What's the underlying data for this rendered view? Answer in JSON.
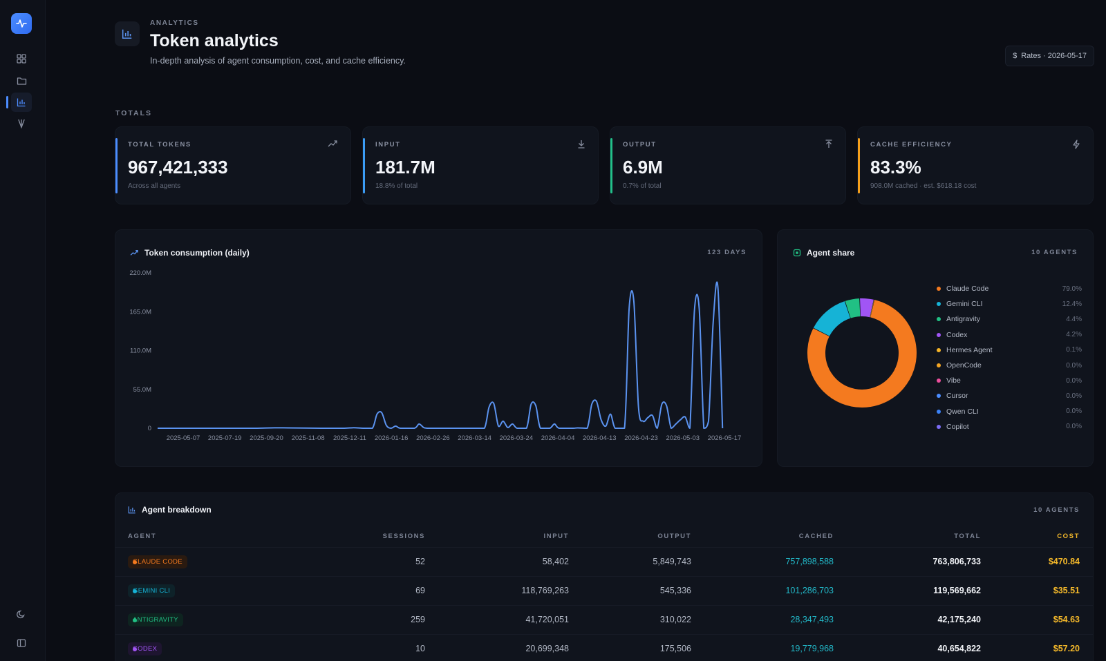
{
  "sidebar": {
    "logo_icon": "activity-icon",
    "items": [
      {
        "name": "dashboard",
        "icon": "grid-icon",
        "active": false
      },
      {
        "name": "projects",
        "icon": "folder-icon",
        "active": false
      },
      {
        "name": "analytics",
        "icon": "bar-chart-icon",
        "active": true
      },
      {
        "name": "agents",
        "icon": "fork-icon",
        "active": false
      }
    ],
    "bottom_items": [
      {
        "name": "theme",
        "icon": "moon-icon"
      },
      {
        "name": "collapse",
        "icon": "sidebar-toggle-icon"
      }
    ]
  },
  "header": {
    "eyebrow": "ANALYTICS",
    "title": "Token analytics",
    "subtitle": "In-depth analysis of agent consumption, cost, and cache efficiency.",
    "rates_button": "Rates · 2026-05-17",
    "rates_icon": "dollar-icon"
  },
  "totals": {
    "section_label": "TOTALS",
    "cards": [
      {
        "label": "TOTAL TOKENS",
        "value": "967,421,333",
        "note": "Across all agents",
        "accent": "#4c8dff",
        "icon": "trending-up-icon"
      },
      {
        "label": "INPUT",
        "value": "181.7M",
        "note": "18.8% of total",
        "accent": "#3b9cf5",
        "icon": "download-icon"
      },
      {
        "label": "OUTPUT",
        "value": "6.9M",
        "note": "0.7% of total",
        "accent": "#22c08a",
        "icon": "upload-icon"
      },
      {
        "label": "CACHE EFFICIENCY",
        "value": "83.3%",
        "note": "908.0M cached · est. $618.18 cost",
        "accent": "#f59f1b",
        "icon": "bolt-icon"
      }
    ]
  },
  "consumption": {
    "title": "Token consumption (daily)",
    "meta": "123 DAYS",
    "line_color": "#5b93f0"
  },
  "chart_data": {
    "type": "line",
    "title": "Token consumption (daily)",
    "x_ticks": [
      "2025-05-07",
      "2025-07-19",
      "2025-09-20",
      "2025-11-08",
      "2025-12-11",
      "2026-01-16",
      "2026-02-26",
      "2026-03-14",
      "2026-03-24",
      "2026-04-04",
      "2026-04-13",
      "2026-04-23",
      "2026-05-03",
      "2026-05-17"
    ],
    "y_ticks": [
      "0",
      "55.0M",
      "110.0M",
      "165.0M",
      "220.0M"
    ],
    "ylim": [
      0,
      220
    ],
    "y_unit": "M",
    "x_index_range": [
      0,
      122
    ],
    "points": [
      [
        0,
        0
      ],
      [
        10,
        0
      ],
      [
        20,
        0
      ],
      [
        25,
        0.6
      ],
      [
        28,
        0.5
      ],
      [
        35,
        0
      ],
      [
        40,
        0
      ],
      [
        42,
        0.7
      ],
      [
        44,
        0
      ],
      [
        46,
        0
      ],
      [
        47,
        20
      ],
      [
        48,
        22
      ],
      [
        49,
        4
      ],
      [
        50,
        0
      ],
      [
        51,
        3
      ],
      [
        52,
        0
      ],
      [
        55,
        0
      ],
      [
        56,
        6
      ],
      [
        57,
        1
      ],
      [
        58,
        0
      ],
      [
        62,
        0
      ],
      [
        68,
        0
      ],
      [
        70,
        0
      ],
      [
        71,
        30
      ],
      [
        72,
        35
      ],
      [
        73,
        3
      ],
      [
        74,
        10
      ],
      [
        75,
        1
      ],
      [
        76,
        6
      ],
      [
        77,
        0
      ],
      [
        79,
        0
      ],
      [
        80,
        34
      ],
      [
        81,
        32
      ],
      [
        82,
        0
      ],
      [
        84,
        0
      ],
      [
        85,
        6
      ],
      [
        86,
        0
      ],
      [
        89,
        0
      ],
      [
        90,
        0.5
      ],
      [
        92,
        0
      ],
      [
        93,
        34
      ],
      [
        94,
        38
      ],
      [
        95,
        12
      ],
      [
        96,
        3
      ],
      [
        97,
        20
      ],
      [
        98,
        0
      ],
      [
        100,
        0
      ],
      [
        101,
        170
      ],
      [
        102,
        180
      ],
      [
        103,
        30
      ],
      [
        104,
        10
      ],
      [
        105,
        15
      ],
      [
        106,
        18
      ],
      [
        107,
        0
      ],
      [
        108,
        34
      ],
      [
        109,
        32
      ],
      [
        110,
        0
      ],
      [
        111,
        6
      ],
      [
        112,
        12
      ],
      [
        113,
        16
      ],
      [
        114,
        0
      ],
      [
        115,
        168
      ],
      [
        116,
        170
      ],
      [
        117,
        0
      ],
      [
        118,
        10
      ],
      [
        119,
        150
      ],
      [
        120,
        200
      ],
      [
        121,
        0
      ]
    ],
    "grid": false
  },
  "agent_share": {
    "title": "Agent share",
    "meta": "10 AGENTS",
    "icon": "chip-icon",
    "segments": [
      {
        "name": "Claude Code",
        "pct_label": "79.0%",
        "pct": 79.0,
        "color": "#f47a1f"
      },
      {
        "name": "Gemini CLI",
        "pct_label": "12.4%",
        "pct": 12.4,
        "color": "#16b3d6"
      },
      {
        "name": "Antigravity",
        "pct_label": "4.4%",
        "pct": 4.4,
        "color": "#21c084"
      },
      {
        "name": "Codex",
        "pct_label": "4.2%",
        "pct": 4.2,
        "color": "#a155f5"
      },
      {
        "name": "Hermes Agent",
        "pct_label": "0.1%",
        "pct": 0.1,
        "color": "#f5b428"
      },
      {
        "name": "OpenCode",
        "pct_label": "0.0%",
        "pct": 0.0,
        "color": "#f5a623"
      },
      {
        "name": "Vibe",
        "pct_label": "0.0%",
        "pct": 0.0,
        "color": "#ec4f9c"
      },
      {
        "name": "Cursor",
        "pct_label": "0.0%",
        "pct": 0.0,
        "color": "#4c8dff"
      },
      {
        "name": "Qwen CLI",
        "pct_label": "0.0%",
        "pct": 0.0,
        "color": "#3b82f6"
      },
      {
        "name": "Copilot",
        "pct_label": "0.0%",
        "pct": 0.0,
        "color": "#7c6cf5"
      }
    ]
  },
  "breakdown": {
    "title": "Agent breakdown",
    "meta": "10 AGENTS",
    "icon": "bar-chart-icon",
    "columns": [
      "AGENT",
      "SESSIONS",
      "INPUT",
      "OUTPUT",
      "CACHED",
      "TOTAL",
      "COST"
    ],
    "rows": [
      {
        "agent": "CLAUDE CODE",
        "color": "#f47a1f",
        "bg": "#2a1a10",
        "sessions": "52",
        "input": "58,402",
        "output": "5,849,743",
        "cached": "757,898,588",
        "total": "763,806,733",
        "cost": "$470.84"
      },
      {
        "agent": "GEMINI CLI",
        "color": "#16b3d6",
        "bg": "#0e2229",
        "sessions": "69",
        "input": "118,769,263",
        "output": "545,336",
        "cached": "101,286,703",
        "total": "119,569,662",
        "cost": "$35.51"
      },
      {
        "agent": "ANTIGRAVITY",
        "color": "#21c084",
        "bg": "#0e2420",
        "sessions": "259",
        "input": "41,720,051",
        "output": "310,022",
        "cached": "28,347,493",
        "total": "42,175,240",
        "cost": "$54.63"
      },
      {
        "agent": "CODEX",
        "color": "#a155f5",
        "bg": "#1e1530",
        "sessions": "10",
        "input": "20,699,348",
        "output": "175,506",
        "cached": "19,779,968",
        "total": "40,654,822",
        "cost": "$57.20"
      }
    ]
  },
  "colors": {
    "cached_text": "#22b9c9",
    "cost_text": "#f5b92a",
    "total_text": "#f0f2f6"
  }
}
